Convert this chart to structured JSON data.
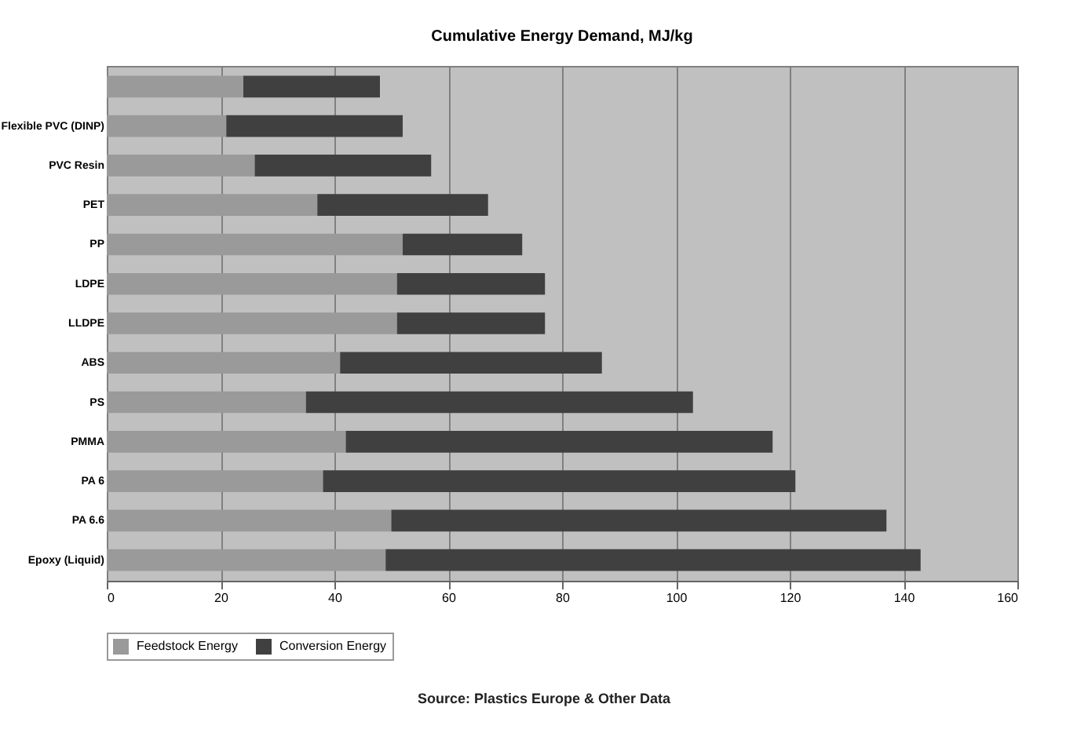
{
  "chart_data": {
    "type": "bar",
    "orientation": "horizontal",
    "stacked": true,
    "title": "Cumulative Energy Demand, MJ/kg",
    "categories": [
      null,
      "Flexible PVC (DINP)",
      "PVC Resin",
      "PET",
      "PP",
      "LDPE",
      "LLDPE",
      "ABS",
      "PS",
      "PMMA",
      "PA 6",
      "PA 6.6",
      "Epoxy (Liquid)"
    ],
    "series": [
      {
        "name": "Feedstock Energy",
        "color": "#9a9a9a",
        "values": [
          24,
          21,
          26,
          37,
          52,
          51,
          51,
          41,
          35,
          42,
          38,
          50,
          49
        ]
      },
      {
        "name": "Conversion Energy",
        "color": "#404040",
        "values": [
          24,
          31,
          31,
          30,
          21,
          26,
          26,
          46,
          68,
          75,
          83,
          87,
          94
        ]
      }
    ],
    "xlim": [
      0,
      160
    ],
    "xticks": [
      0,
      20,
      40,
      60,
      80,
      100,
      120,
      140,
      160
    ],
    "grid": "x",
    "legend": "bottom",
    "annotations": [
      "Source: Plastics Europe & Other Data"
    ]
  }
}
